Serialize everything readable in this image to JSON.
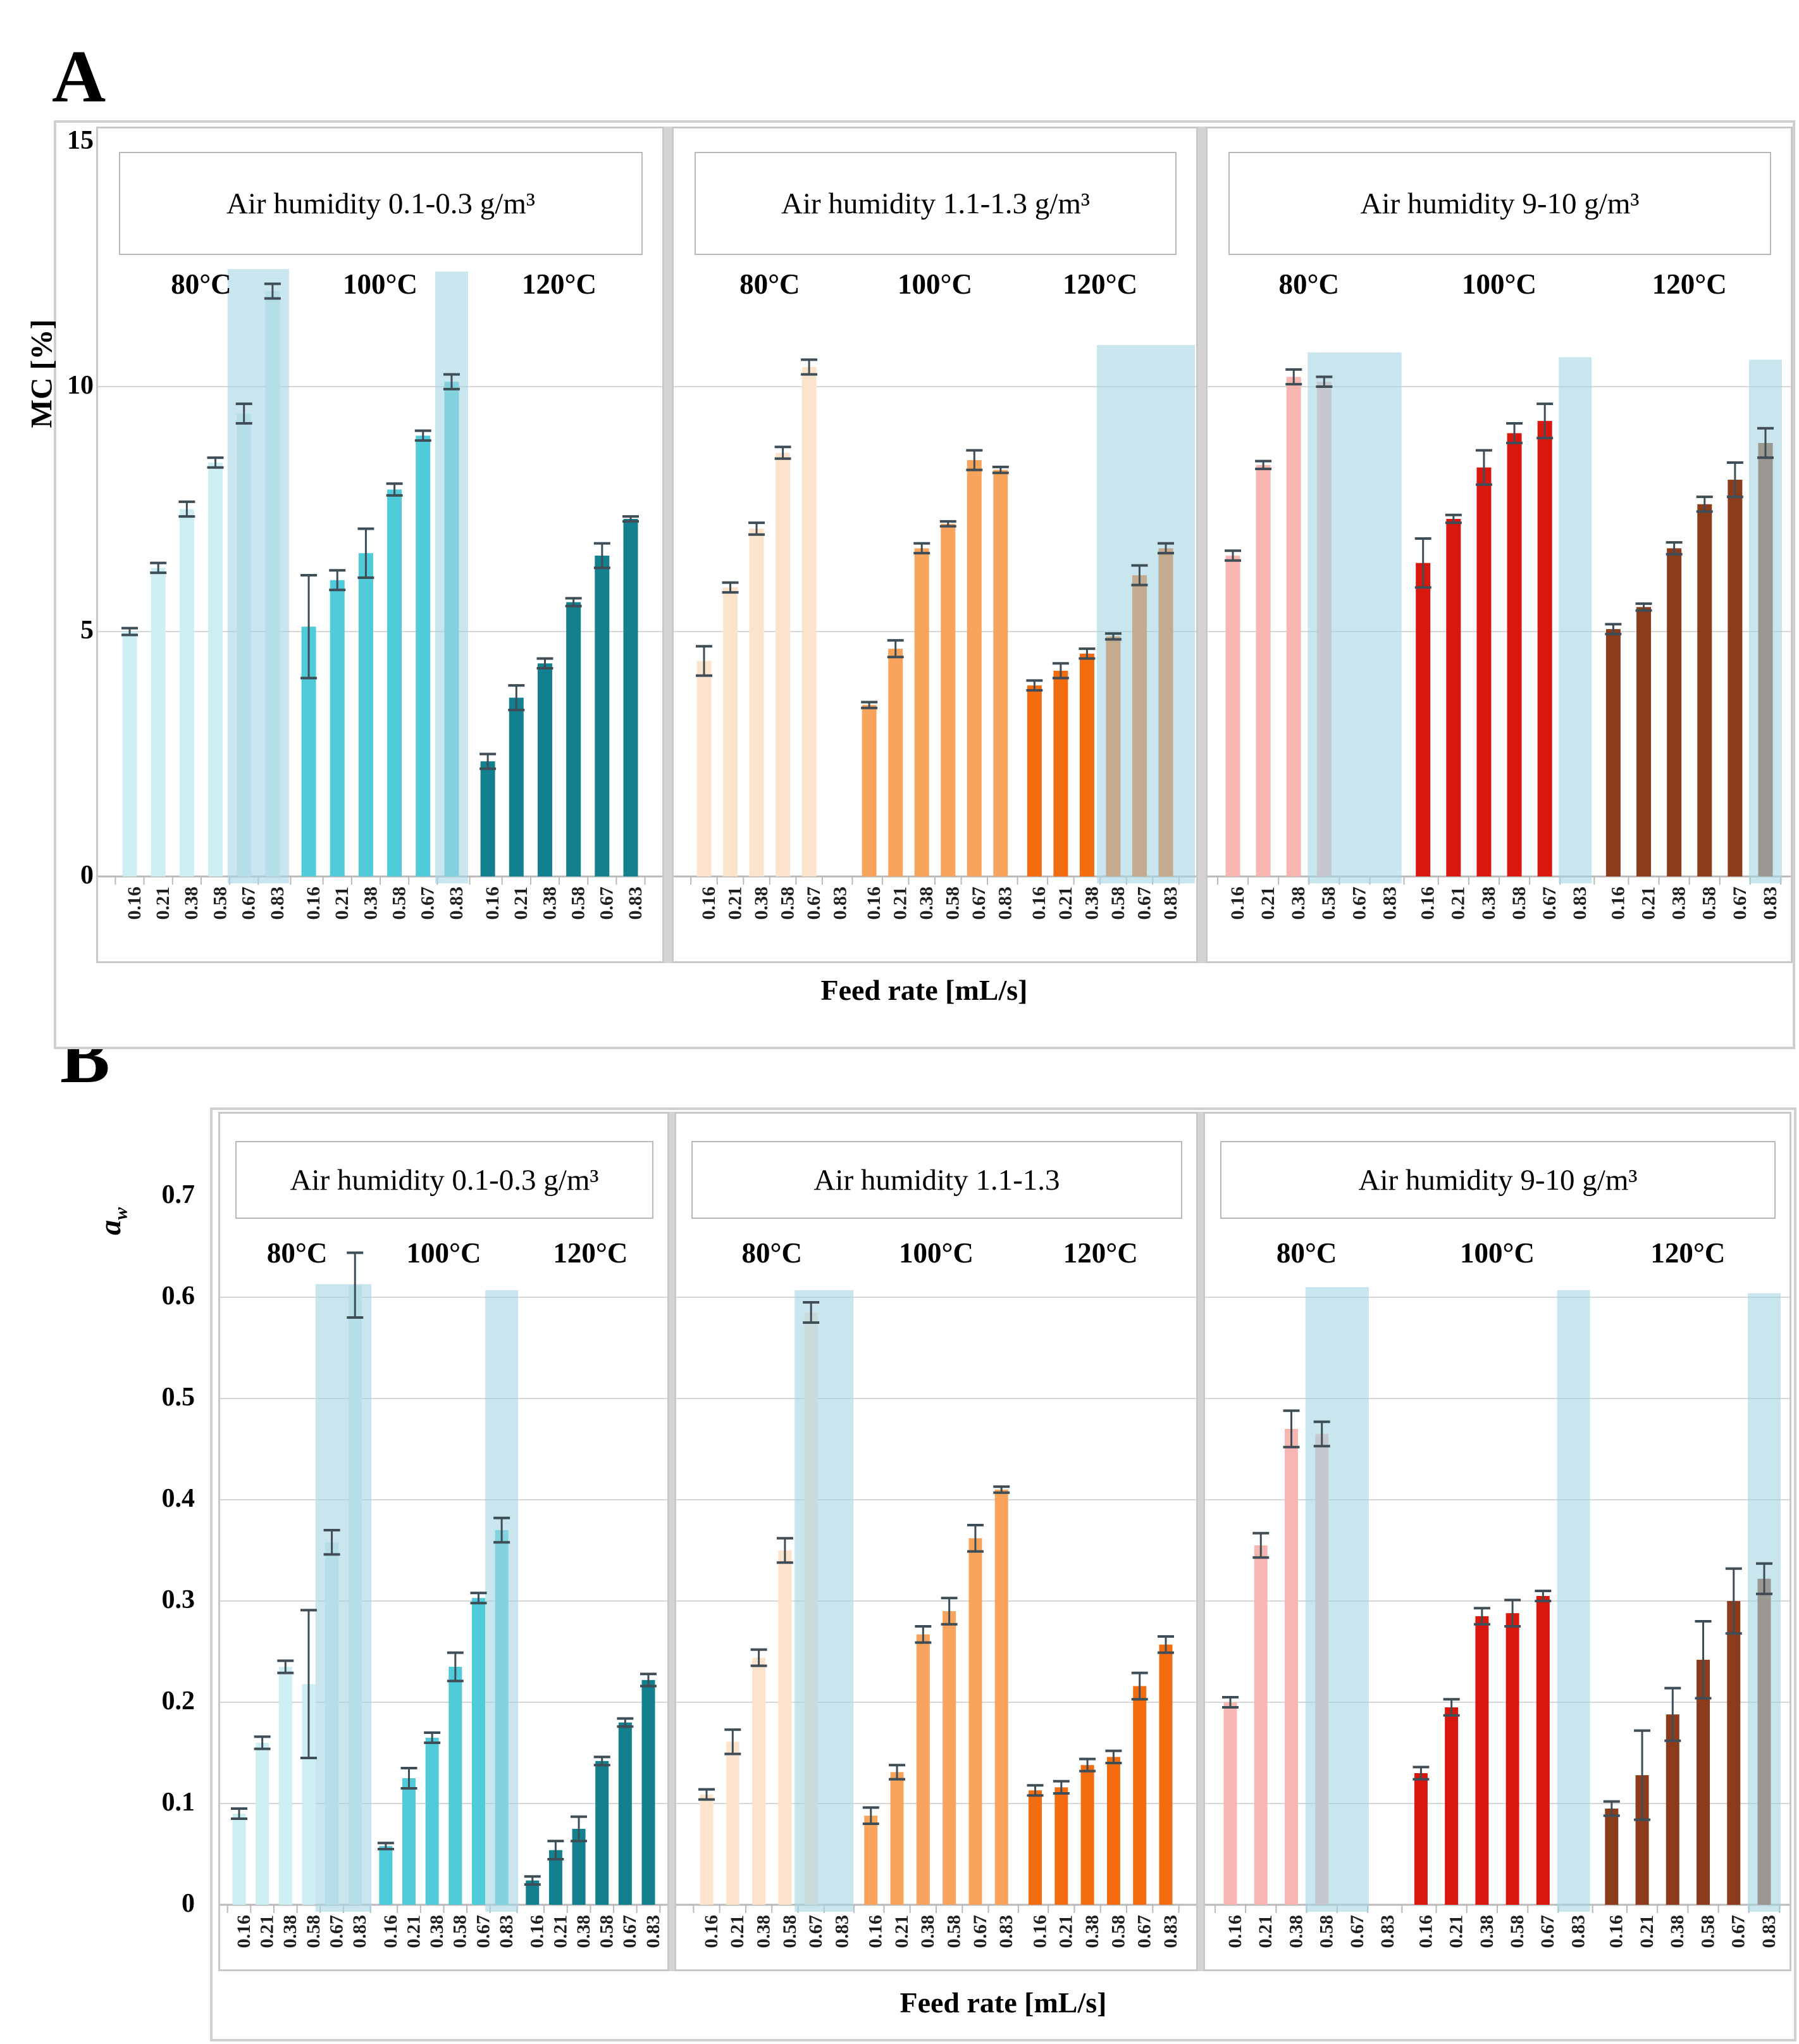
{
  "page": {
    "panel_a_letter": "A",
    "panel_b_letter": "B"
  },
  "feed_rates": [
    "0.16",
    "0.21",
    "0.38",
    "0.58",
    "0.67",
    "0.83"
  ],
  "colors": {
    "humidity_low": [
      "#cdeef2",
      "#50cbda",
      "#12808e"
    ],
    "humidity_mid": [
      "#fce4cc",
      "#f9a45c",
      "#f36c0f"
    ],
    "humidity_high": [
      "#f8b6b2",
      "#d9170e",
      "#8c3c1b"
    ],
    "highlight_band": "rgba(165,211,227,0.6)",
    "gridline": "#d7d7d7",
    "axis_line": "#b9b9b9",
    "error_bar": "#3f4d57"
  },
  "chart_data": [
    {
      "type": "bar",
      "panel": "A",
      "y_axis": {
        "label": "MC [%]",
        "ticks": [
          0,
          5,
          10,
          15
        ],
        "tick_labels": [
          "0",
          "5",
          "10",
          "15"
        ],
        "ylim": [
          0,
          15
        ]
      },
      "x_axis": {
        "label": "Feed rate [mL/s]",
        "categories": [
          "0.16",
          "0.21",
          "0.38",
          "0.58",
          "0.67",
          "0.83"
        ]
      },
      "groups": [
        {
          "header": "Air humidity 0.1-0.3 g/m³",
          "series": [
            {
              "name": "80°C",
              "color": "#cdeef2",
              "values": [
                5.0,
                6.3,
                7.5,
                8.45,
                9.45,
                11.95
              ],
              "errors": [
                0.07,
                0.1,
                0.15,
                0.1,
                0.2,
                0.15
              ]
            },
            {
              "name": "100°C",
              "color": "#50cbda",
              "values": [
                5.1,
                6.05,
                6.6,
                7.9,
                9.0,
                10.1
              ],
              "errors": [
                1.05,
                0.2,
                0.5,
                0.12,
                0.1,
                0.15
              ]
            },
            {
              "name": "120°C",
              "color": "#12808e",
              "values": [
                2.35,
                3.65,
                4.35,
                5.6,
                6.55,
                7.3
              ],
              "errors": [
                0.15,
                0.25,
                0.1,
                0.08,
                0.25,
                0.05
              ]
            }
          ],
          "highlight_bands": [
            {
              "from_col": 4,
              "to_col": 5,
              "top": 12.4
            },
            {
              "from_col": 11,
              "to_col": 11,
              "top": 12.35
            }
          ]
        },
        {
          "header": "Air humidity 1.1-1.3 g/m³",
          "series": [
            {
              "name": "80°C",
              "color": "#fce4cc",
              "values": [
                4.4,
                5.9,
                7.1,
                8.65,
                10.4,
                null
              ],
              "errors": [
                0.3,
                0.1,
                0.12,
                0.12,
                0.15,
                null
              ]
            },
            {
              "name": "100°C",
              "color": "#f9a45c",
              "values": [
                3.5,
                4.65,
                6.7,
                7.2,
                8.5,
                8.3
              ],
              "errors": [
                0.06,
                0.17,
                0.1,
                0.05,
                0.2,
                0.06
              ]
            },
            {
              "name": "120°C",
              "color": "#f36c0f",
              "values": [
                3.9,
                4.2,
                4.55,
                4.9,
                6.15,
                6.7
              ],
              "errors": [
                0.1,
                0.15,
                0.1,
                0.06,
                0.2,
                0.1
              ]
            }
          ],
          "highlight_bands": [
            {
              "from_col": 15,
              "to_col": 17,
              "top": 10.85,
              "flush_right": true
            }
          ]
        },
        {
          "header": "Air humidity 9-10 g/m³",
          "series": [
            {
              "name": "80°C",
              "color": "#f8b6b2",
              "values": [
                6.55,
                8.4,
                10.2,
                10.1,
                null,
                null
              ],
              "errors": [
                0.1,
                0.08,
                0.15,
                0.1,
                null,
                null
              ]
            },
            {
              "name": "100°C",
              "color": "#d9170e",
              "values": [
                6.4,
                7.3,
                8.35,
                9.05,
                9.3,
                null
              ],
              "errors": [
                0.5,
                0.08,
                0.35,
                0.2,
                0.35,
                null
              ]
            },
            {
              "name": "120°C",
              "color": "#8c3c1b",
              "values": [
                5.05,
                5.5,
                6.7,
                7.6,
                8.1,
                8.85
              ],
              "errors": [
                0.1,
                0.07,
                0.12,
                0.15,
                0.35,
                0.3
              ]
            }
          ],
          "highlight_bands": [
            {
              "from_col": 3,
              "to_col": 5,
              "top": 10.7
            },
            {
              "from_col": 11,
              "to_col": 11,
              "top": 10.6
            },
            {
              "from_col": 17,
              "to_col": 17,
              "top": 10.55
            }
          ]
        }
      ]
    },
    {
      "type": "bar",
      "panel": "B",
      "y_axis": {
        "label_main": "a",
        "label_sub": "w",
        "ticks": [
          0,
          0.1,
          0.2,
          0.3,
          0.4,
          0.5,
          0.6,
          0.7
        ],
        "tick_labels": [
          "0",
          "0.1",
          "0.2",
          "0.3",
          "0.4",
          "0.5",
          "0.6",
          "0.7"
        ],
        "ylim": [
          0,
          0.7
        ]
      },
      "x_axis": {
        "label": "Feed rate [mL/s]",
        "categories": [
          "0.16",
          "0.21",
          "0.38",
          "0.58",
          "0.67",
          "0.83"
        ]
      },
      "groups": [
        {
          "header": "Air humidity 0.1-0.3 g/m³",
          "series": [
            {
              "name": "80°C",
              "color": "#cdeef2",
              "values": [
                0.09,
                0.16,
                0.235,
                0.218,
                0.358,
                0.612
              ],
              "errors": [
                0.005,
                0.006,
                0.006,
                0.073,
                0.012,
                0.032
              ]
            },
            {
              "name": "100°C",
              "color": "#50cbda",
              "values": [
                0.058,
                0.125,
                0.165,
                0.235,
                0.303,
                0.37
              ],
              "errors": [
                0.003,
                0.01,
                0.005,
                0.014,
                0.005,
                0.012
              ]
            },
            {
              "name": "120°C",
              "color": "#12808e",
              "values": [
                0.024,
                0.054,
                0.075,
                0.142,
                0.18,
                0.222
              ],
              "errors": [
                0.004,
                0.009,
                0.012,
                0.004,
                0.004,
                0.006
              ]
            }
          ],
          "highlight_bands": [
            {
              "from_col": 4,
              "to_col": 5,
              "top": 0.613
            },
            {
              "from_col": 11,
              "to_col": 11,
              "top": 0.607
            }
          ]
        },
        {
          "header": "Air humidity 1.1-1.3",
          "series": [
            {
              "name": "80°C",
              "color": "#fce4cc",
              "values": [
                0.109,
                0.161,
                0.244,
                0.35,
                0.585,
                null
              ],
              "errors": [
                0.005,
                0.012,
                0.008,
                0.012,
                0.01,
                null
              ]
            },
            {
              "name": "100°C",
              "color": "#f9a45c",
              "values": [
                0.088,
                0.131,
                0.267,
                0.29,
                0.362,
                0.41
              ],
              "errors": [
                0.008,
                0.007,
                0.008,
                0.013,
                0.013,
                0.003
              ]
            },
            {
              "name": "120°C",
              "color": "#f36c0f",
              "values": [
                0.113,
                0.116,
                0.138,
                0.146,
                0.216,
                0.257
              ],
              "errors": [
                0.005,
                0.006,
                0.006,
                0.006,
                0.013,
                0.008
              ]
            }
          ],
          "highlight_bands": [
            {
              "from_col": 4,
              "to_col": 5,
              "top": 0.607
            }
          ]
        },
        {
          "header": "Air humidity 9-10 g/m³",
          "series": [
            {
              "name": "80°C",
              "color": "#f8b6b2",
              "values": [
                0.2,
                0.355,
                0.47,
                0.465,
                null,
                null
              ],
              "errors": [
                0.005,
                0.012,
                0.018,
                0.012,
                null,
                null
              ]
            },
            {
              "name": "100°C",
              "color": "#d9170e",
              "values": [
                0.13,
                0.195,
                0.285,
                0.288,
                0.305,
                null
              ],
              "errors": [
                0.006,
                0.008,
                0.008,
                0.013,
                0.005,
                null
              ]
            },
            {
              "name": "120°C",
              "color": "#8c3c1b",
              "values": [
                0.095,
                0.128,
                0.188,
                0.242,
                0.3,
                0.322
              ],
              "errors": [
                0.007,
                0.044,
                0.026,
                0.038,
                0.032,
                0.015
              ]
            }
          ],
          "highlight_bands": [
            {
              "from_col": 3,
              "to_col": 4,
              "top": 0.61
            },
            {
              "from_col": 11,
              "to_col": 11,
              "top": 0.607
            },
            {
              "from_col": 17,
              "to_col": 17,
              "top": 0.604
            }
          ]
        }
      ]
    }
  ]
}
